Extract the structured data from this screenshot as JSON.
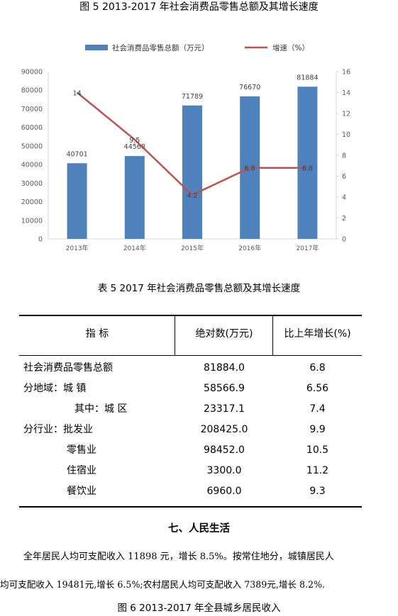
{
  "figure5": {
    "title": "图 5 2013-2017 年社会消费品零售总额及其增长速度"
  },
  "chart_data": {
    "type": "bar",
    "categories": [
      "2013年",
      "2014年",
      "2015年",
      "2016年",
      "2017年"
    ],
    "series": [
      {
        "name": "社会消费品零售总额（万元）",
        "type": "bar",
        "axis": "left",
        "values": [
          40701,
          44568,
          71789,
          76670,
          81884
        ],
        "color": "#4f81bd"
      },
      {
        "name": "增速（%）",
        "type": "line",
        "axis": "right",
        "values": [
          14,
          9.5,
          4.2,
          6.8,
          6.8
        ],
        "color": "#c0504d"
      }
    ],
    "data_labels": {
      "bar": [
        "40701",
        "44568",
        "71789",
        "76670",
        "81884"
      ],
      "line": [
        "14",
        "9.5",
        "4.2",
        "6.8",
        "6.8"
      ]
    },
    "ylim_left": [
      0,
      90000
    ],
    "yticks_left": [
      "0",
      "10000",
      "20000",
      "30000",
      "40000",
      "50000",
      "60000",
      "70000",
      "80000",
      "90000"
    ],
    "ylim_right": [
      0,
      16
    ],
    "yticks_right": [
      "0",
      "2",
      "4",
      "6",
      "8",
      "10",
      "12",
      "14",
      "16"
    ],
    "grid": false,
    "legend_position": "top"
  },
  "table5": {
    "title": "表 5  2017 年社会消费品零售总额及其增长速度",
    "headers": [
      "指  标",
      "绝对数(万元)",
      "比上年增长(%)"
    ],
    "rows": [
      {
        "label": "社会消费品零售总额",
        "value": "81884.0",
        "growth": "6.8"
      },
      {
        "label": "分地域：城 镇",
        "value": "58566.9",
        "growth": "6.56"
      },
      {
        "label": "其中：城 区",
        "value": "23317.1",
        "growth": "7.4"
      },
      {
        "label": "分行业：批发业",
        "value": "208425.0",
        "growth": "9.9"
      },
      {
        "label": "零售业",
        "value": "98452.0",
        "growth": "10.5"
      },
      {
        "label": "住宿业",
        "value": "3300.0",
        "growth": "11.2"
      },
      {
        "label": "餐饮业",
        "value": "6960.0",
        "growth": "9.3"
      }
    ]
  },
  "section": {
    "heading": "七、人民生活",
    "para_line1": "全年居民人均可支配收入 11898 元，增长 8.5%。按常住地分，城镇居民人",
    "para_line2": "均可支配收入 19481元,增长 6.5%;农村居民人均可支配收入 7389元,增长 8.2%."
  },
  "figure6": {
    "title": "图 6   2013-2017 年全县城乡居民收入"
  }
}
